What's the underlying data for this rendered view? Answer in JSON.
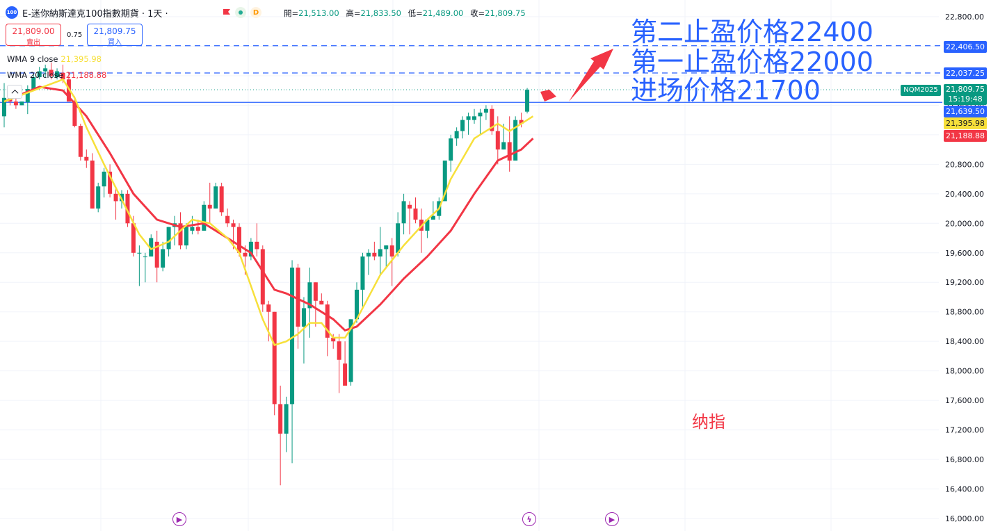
{
  "header": {
    "symbol_icon": "100",
    "title": "E-迷你納斯達克100指數期貨 · 1天 ·",
    "open_label": "開=",
    "open": "21,513.00",
    "high_label": "高=",
    "high": "21,833.50",
    "low_label": "低=",
    "low": "21,489.00",
    "close_label": "收=",
    "close": "21,809.75",
    "market_badge": "D"
  },
  "trade": {
    "sell_price": "21,809.00",
    "sell_label": "賣出",
    "spread": "0.75",
    "buy_price": "21,809.75",
    "buy_label": "買入"
  },
  "indicators": [
    {
      "name": "WMA 9 close",
      "value": "21,395.98",
      "color": "#f7e03b"
    },
    {
      "name": "WMA 20 close",
      "value": "21,188.88",
      "color": "#f23645"
    }
  ],
  "annotations": {
    "tp2": "第二止盈价格22400",
    "tp1": "第一止盈价格22000",
    "entry": "进场价格21700",
    "note": "纳指"
  },
  "price_labels": {
    "tp2": {
      "text": "22,406.50",
      "color": "#2962ff"
    },
    "tp1": {
      "text": "22,037.25",
      "color": "#2962ff"
    },
    "last": {
      "text": "21,809.75",
      "countdown": "15:19:48",
      "color": "#089981"
    },
    "entry": {
      "text": "21,639.50",
      "color": "#2962ff"
    },
    "wma9": {
      "text": "21,395.98",
      "color": "#f7e03b"
    },
    "wma20": {
      "text": "21,188.88",
      "color": "#f23645"
    },
    "symbol_tag": "NQM2025"
  },
  "colors": {
    "up": "#089981",
    "down": "#f23645",
    "wma9": "#f7e03b",
    "wma20": "#f23645",
    "line": "#2962ff"
  },
  "events": [
    "play-icon",
    "flash-icon",
    "play-icon"
  ],
  "chart_data": {
    "type": "candlestick",
    "title": "",
    "y_axis_ticks": [
      "22,800.00",
      "22,400.00",
      "22,000.00",
      "21,600.00",
      "21,200.00",
      "20,800.00",
      "20,400.00",
      "20,000.00",
      "19,600.00",
      "19,200.00",
      "18,800.00",
      "18,400.00",
      "18,000.00",
      "17,600.00",
      "17,200.00",
      "16,800.00",
      "16,400.00",
      "16,000.00"
    ],
    "ylim": [
      16000,
      22800
    ],
    "horizontal_lines": [
      22406.5,
      22037.25,
      21639.5
    ],
    "candles": [
      [
        21450,
        21900,
        21300,
        21700
      ],
      [
        21700,
        21720,
        21600,
        21650
      ],
      [
        21650,
        21780,
        21550,
        21600
      ],
      [
        21600,
        21650,
        21600,
        21650
      ],
      [
        21640,
        21870,
        21480,
        21820
      ],
      [
        21800,
        22020,
        21800,
        21980
      ],
      [
        21980,
        22120,
        21950,
        22060
      ],
      [
        22060,
        22150,
        21980,
        22100
      ],
      [
        22080,
        22180,
        21950,
        22000
      ],
      [
        21980,
        22100,
        21950,
        22060
      ],
      [
        22040,
        22150,
        21900,
        21950
      ],
      [
        21950,
        22040,
        21700,
        21650
      ],
      [
        21650,
        21720,
        21300,
        21320
      ],
      [
        21320,
        21350,
        20850,
        20900
      ],
      [
        20900,
        21000,
        20750,
        20850
      ],
      [
        20850,
        20950,
        20200,
        20200
      ],
      [
        20200,
        20550,
        20150,
        20500
      ],
      [
        20500,
        20750,
        20350,
        20700
      ],
      [
        20700,
        20800,
        20350,
        20400
      ],
      [
        20400,
        20500,
        20050,
        20300
      ],
      [
        20300,
        20450,
        20200,
        20400
      ],
      [
        20400,
        20450,
        19950,
        20000
      ],
      [
        20000,
        20100,
        19550,
        19600
      ],
      [
        19600,
        19700,
        19150,
        19600
      ],
      [
        19550,
        19600,
        19200,
        19550
      ],
      [
        19550,
        19850,
        19550,
        19800
      ],
      [
        19750,
        19900,
        19200,
        19400
      ],
      [
        19400,
        19750,
        19350,
        19650
      ],
      [
        19650,
        19950,
        19550,
        19950
      ],
      [
        19950,
        20100,
        19700,
        20000
      ],
      [
        20000,
        20150,
        19650,
        19700
      ],
      [
        19700,
        20000,
        19650,
        19950
      ],
      [
        19900,
        20100,
        19850,
        19950
      ],
      [
        19950,
        20050,
        19850,
        19900
      ],
      [
        19900,
        20300,
        19900,
        20250
      ],
      [
        20250,
        20550,
        20000,
        20200
      ],
      [
        20200,
        20550,
        20200,
        20500
      ],
      [
        20500,
        20550,
        20100,
        20150
      ],
      [
        20100,
        20200,
        19950,
        20000
      ],
      [
        20000,
        20050,
        19650,
        19950
      ],
      [
        19950,
        20000,
        19550,
        19600
      ],
      [
        19600,
        19700,
        19300,
        19550
      ],
      [
        19550,
        19800,
        19500,
        19750
      ],
      [
        19750,
        20000,
        19550,
        19650
      ],
      [
        19650,
        19700,
        18800,
        18900
      ],
      [
        18900,
        18950,
        18400,
        18800
      ],
      [
        18800,
        18800,
        17400,
        17550
      ],
      [
        17550,
        17800,
        16450,
        17150
      ],
      [
        17150,
        17650,
        16900,
        17550
      ],
      [
        17550,
        19500,
        16750,
        19400
      ],
      [
        19400,
        19450,
        18300,
        18600
      ],
      [
        18600,
        19000,
        18100,
        18850
      ],
      [
        18850,
        19400,
        18450,
        19200
      ],
      [
        19200,
        19200,
        18600,
        18950
      ],
      [
        18950,
        19050,
        18900,
        18900
      ],
      [
        18900,
        18950,
        18200,
        18450
      ],
      [
        18450,
        18500,
        18300,
        18400
      ],
      [
        18400,
        18500,
        17700,
        18150
      ],
      [
        18100,
        18400,
        17850,
        17800
      ],
      [
        17850,
        18700,
        17800,
        18700
      ],
      [
        18700,
        19200,
        18650,
        19100
      ],
      [
        19100,
        19600,
        18850,
        19550
      ],
      [
        19550,
        19650,
        19300,
        19600
      ],
      [
        19600,
        19750,
        19500,
        19550
      ],
      [
        19550,
        19950,
        19300,
        19650
      ],
      [
        19650,
        19700,
        19400,
        19700
      ],
      [
        19700,
        19800,
        19150,
        19550
      ],
      [
        19600,
        20150,
        19550,
        20000
      ],
      [
        20000,
        20400,
        19850,
        20300
      ],
      [
        20250,
        20300,
        19850,
        20200
      ],
      [
        20200,
        20350,
        20000,
        20050
      ],
      [
        20050,
        20200,
        19600,
        19900
      ],
      [
        19900,
        20050,
        19800,
        20050
      ],
      [
        20050,
        20300,
        20050,
        20100
      ],
      [
        20100,
        20350,
        20050,
        20300
      ],
      [
        20300,
        20850,
        20300,
        20850
      ],
      [
        20850,
        21200,
        20700,
        21150
      ],
      [
        21150,
        21300,
        21050,
        21250
      ],
      [
        21250,
        21450,
        21150,
        21400
      ],
      [
        21400,
        21500,
        21200,
        21450
      ],
      [
        21400,
        21550,
        21350,
        21450
      ],
      [
        21450,
        21550,
        21200,
        21500
      ],
      [
        21500,
        21600,
        21400,
        21550
      ],
      [
        21550,
        21600,
        21200,
        21250
      ],
      [
        21250,
        21450,
        20800,
        21000
      ],
      [
        21000,
        21350,
        21000,
        21100
      ],
      [
        21100,
        21450,
        20700,
        20850
      ],
      [
        20850,
        21450,
        20850,
        21400
      ],
      [
        21400,
        21500,
        21300,
        21350
      ],
      [
        21513,
        21833.5,
        21489,
        21809.75
      ]
    ],
    "wma9": [
      [
        0,
        21650
      ],
      [
        10,
        21950
      ],
      [
        12,
        21700
      ],
      [
        14,
        21300
      ],
      [
        17,
        20800
      ],
      [
        23,
        19850
      ],
      [
        25,
        19650
      ],
      [
        28,
        19750
      ],
      [
        32,
        20050
      ],
      [
        35,
        20000
      ],
      [
        38,
        19800
      ],
      [
        40,
        19600
      ],
      [
        44,
        18700
      ],
      [
        46,
        18350
      ],
      [
        48,
        18400
      ],
      [
        50,
        18500
      ],
      [
        52,
        18650
      ],
      [
        54,
        18650
      ],
      [
        56,
        18450
      ],
      [
        58,
        18450
      ],
      [
        60,
        18700
      ],
      [
        64,
        19300
      ],
      [
        68,
        19700
      ],
      [
        72,
        20050
      ],
      [
        74,
        20200
      ],
      [
        76,
        20600
      ],
      [
        80,
        21150
      ],
      [
        84,
        21350
      ],
      [
        86,
        21250
      ],
      [
        88,
        21350
      ],
      [
        90,
        21450
      ]
    ],
    "wma20": [
      [
        0,
        21650
      ],
      [
        6,
        21850
      ],
      [
        10,
        21800
      ],
      [
        14,
        21450
      ],
      [
        18,
        20950
      ],
      [
        22,
        20400
      ],
      [
        26,
        20050
      ],
      [
        30,
        19950
      ],
      [
        34,
        20000
      ],
      [
        38,
        19800
      ],
      [
        42,
        19600
      ],
      [
        46,
        19100
      ],
      [
        48,
        19050
      ],
      [
        52,
        18900
      ],
      [
        56,
        18700
      ],
      [
        58,
        18550
      ],
      [
        60,
        18600
      ],
      [
        64,
        18900
      ],
      [
        68,
        19250
      ],
      [
        72,
        19550
      ],
      [
        76,
        19900
      ],
      [
        80,
        20400
      ],
      [
        84,
        20850
      ],
      [
        88,
        21000
      ],
      [
        90,
        21150
      ]
    ]
  }
}
